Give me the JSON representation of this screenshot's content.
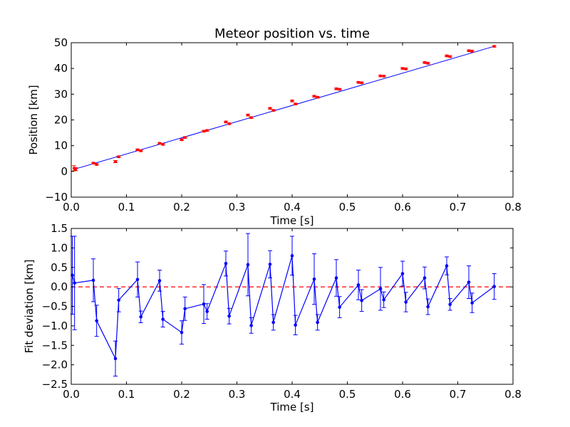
{
  "chart_data": [
    {
      "type": "line",
      "title": "Meteor position vs. time",
      "xlabel": "Time [s]",
      "ylabel": "Position [km]",
      "xlim": [
        0.0,
        0.8
      ],
      "ylim": [
        -10,
        50
      ],
      "xticks": [
        0.0,
        0.1,
        0.2,
        0.3,
        0.4,
        0.5,
        0.6,
        0.7,
        0.8
      ],
      "xtick_labels": [
        "0.0",
        "0.1",
        "0.2",
        "0.3",
        "0.4",
        "0.5",
        "0.6",
        "0.7",
        "0.8"
      ],
      "yticks": [
        -10,
        0,
        10,
        20,
        30,
        40,
        50
      ],
      "ytick_labels": [
        "−10",
        "0",
        "10",
        "20",
        "30",
        "40",
        "50"
      ],
      "grid": false,
      "colors": {
        "points": "#ff0000",
        "fit": "#0000ff"
      },
      "series": [
        {
          "kind": "errorbar-points",
          "x": [
            0.005,
            0.008,
            0.04,
            0.046,
            0.08,
            0.086,
            0.12,
            0.126,
            0.16,
            0.166,
            0.2,
            0.206,
            0.24,
            0.246,
            0.28,
            0.286,
            0.32,
            0.326,
            0.36,
            0.366,
            0.4,
            0.406,
            0.44,
            0.446,
            0.48,
            0.486,
            0.52,
            0.526,
            0.56,
            0.566,
            0.6,
            0.606,
            0.64,
            0.646,
            0.68,
            0.686,
            0.72,
            0.726,
            0.766
          ],
          "y": [
            1.2,
            0.9,
            3.2,
            2.7,
            3.8,
            5.7,
            8.4,
            8.0,
            10.9,
            10.5,
            12.3,
            13.2,
            15.6,
            15.9,
            19.2,
            18.5,
            21.9,
            20.9,
            24.5,
            23.7,
            27.4,
            26.2,
            29.2,
            28.8,
            32.1,
            31.9,
            34.6,
            34.4,
            37.1,
            37.0,
            40.0,
            39.8,
            42.3,
            42.0,
            44.9,
            44.6,
            46.9,
            46.7,
            48.6
          ],
          "yerr": [
            1.0,
            0.6,
            0.3,
            0.3,
            0.4,
            0.3,
            0.3,
            0.3,
            0.3,
            0.3,
            0.3,
            0.3,
            0.3,
            0.3,
            0.3,
            0.3,
            0.3,
            0.3,
            0.3,
            0.3,
            0.3,
            0.3,
            0.3,
            0.3,
            0.3,
            0.3,
            0.3,
            0.3,
            0.3,
            0.3,
            0.3,
            0.3,
            0.3,
            0.3,
            0.3,
            0.3,
            0.3,
            0.3,
            0.3
          ]
        },
        {
          "kind": "fit-line",
          "x": [
            0.005,
            0.766
          ],
          "y": [
            0.8,
            48.6
          ]
        }
      ]
    },
    {
      "type": "line",
      "title": "",
      "xlabel": "Time [s]",
      "ylabel": "Fit deviation [km]",
      "xlim": [
        0.0,
        0.8
      ],
      "ylim": [
        -2.5,
        1.5
      ],
      "xticks": [
        0.0,
        0.1,
        0.2,
        0.3,
        0.4,
        0.5,
        0.6,
        0.7,
        0.8
      ],
      "xtick_labels": [
        "0.0",
        "0.1",
        "0.2",
        "0.3",
        "0.4",
        "0.5",
        "0.6",
        "0.7",
        "0.8"
      ],
      "yticks": [
        -2.5,
        -2.0,
        -1.5,
        -1.0,
        -0.5,
        0.0,
        0.5,
        1.0,
        1.5
      ],
      "ytick_labels": [
        "−2.5",
        "−2.0",
        "−1.5",
        "−1.0",
        "−0.5",
        "0.0",
        "0.5",
        "1.0",
        "1.5"
      ],
      "grid": false,
      "colors": {
        "series": "#0000ff",
        "reference": "#ff0000"
      },
      "reference_line": {
        "y": 0.0,
        "style": "dashed"
      },
      "series": [
        {
          "kind": "errorbar-line",
          "x": [
            0.002,
            0.006,
            0.04,
            0.046,
            0.08,
            0.086,
            0.12,
            0.126,
            0.16,
            0.166,
            0.2,
            0.206,
            0.24,
            0.246,
            0.28,
            0.286,
            0.32,
            0.326,
            0.36,
            0.366,
            0.4,
            0.406,
            0.44,
            0.446,
            0.48,
            0.486,
            0.52,
            0.526,
            0.56,
            0.566,
            0.6,
            0.606,
            0.64,
            0.646,
            0.68,
            0.686,
            0.72,
            0.726,
            0.766
          ],
          "y": [
            0.3,
            0.1,
            0.17,
            -0.87,
            -1.84,
            -0.34,
            0.19,
            -0.77,
            0.16,
            -0.83,
            -1.17,
            -0.56,
            -0.44,
            -0.63,
            0.6,
            -0.75,
            0.57,
            -0.99,
            0.58,
            -0.91,
            0.8,
            -0.98,
            0.2,
            -0.91,
            0.23,
            -0.52,
            0.05,
            -0.35,
            -0.05,
            -0.33,
            0.34,
            -0.39,
            0.23,
            -0.51,
            0.54,
            -0.45,
            0.12,
            -0.41,
            0.01
          ],
          "yerr": [
            1.0,
            1.2,
            0.55,
            0.4,
            0.45,
            0.3,
            0.45,
            0.15,
            0.27,
            0.2,
            0.3,
            0.3,
            0.5,
            0.2,
            0.32,
            0.2,
            0.8,
            0.2,
            0.35,
            0.2,
            0.5,
            0.25,
            0.65,
            0.2,
            0.47,
            0.27,
            0.38,
            0.28,
            0.55,
            0.2,
            0.32,
            0.25,
            0.28,
            0.2,
            0.23,
            0.15,
            0.42,
            0.25,
            0.33
          ]
        }
      ]
    }
  ]
}
